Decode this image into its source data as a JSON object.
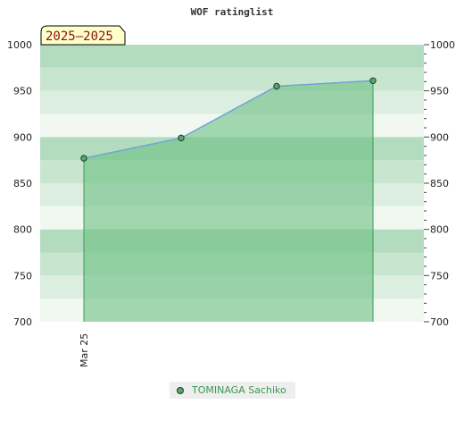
{
  "chart_data": {
    "type": "area",
    "title": "WOF ratinglist",
    "season_label": "2025–2025",
    "x": [
      "Mar 25",
      "",
      "",
      ""
    ],
    "x_tick_labels": [
      "Mar 25"
    ],
    "series": [
      {
        "name": "TOMINAGA Sachiko",
        "values": [
          877,
          899,
          955,
          961
        ]
      }
    ],
    "ylim": [
      700,
      1000
    ],
    "yticks": [
      "700",
      "750",
      "800",
      "850",
      "900",
      "950",
      "1000"
    ],
    "y_axis_sides": [
      "left",
      "right"
    ],
    "legend_placement": "bottom-center",
    "colors": {
      "area_fill": "#6dbf82",
      "line": "#6ea5d8",
      "marker": "#5aa66b",
      "band_dark": "#b3dcbf",
      "band_light": "#f1f8f2",
      "legend_text": "#3a9a4e",
      "season_bg": "#ffffcc"
    }
  },
  "legend": {
    "label": "TOMINAGA Sachiko"
  }
}
